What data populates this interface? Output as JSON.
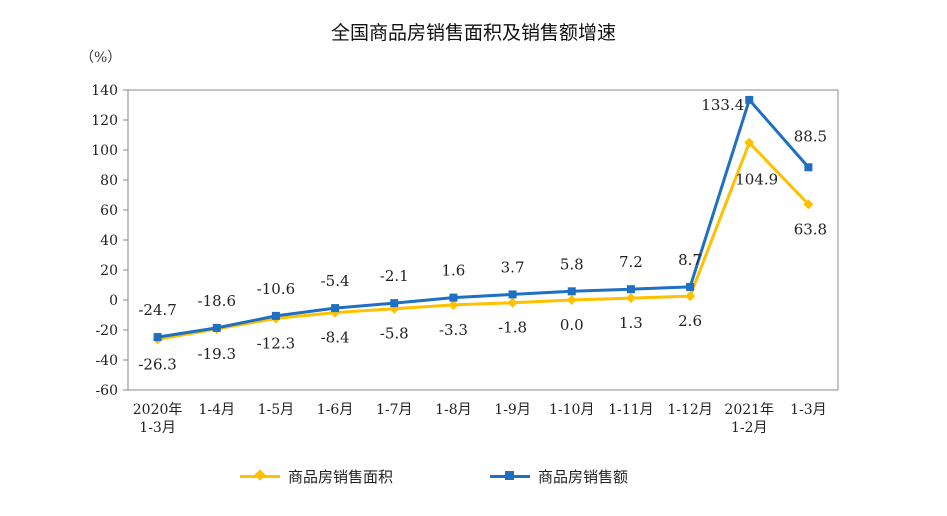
{
  "chart_data": {
    "type": "line",
    "title": "全国商品房销售面积及销售额增速",
    "ylabel": "（%）",
    "ylim": [
      -60,
      140
    ],
    "yticks": [
      140,
      120,
      100,
      80,
      60,
      40,
      20,
      0,
      -20,
      -40,
      -60
    ],
    "categories": [
      [
        "2020年",
        "1-3月"
      ],
      [
        "1-4月"
      ],
      [
        "1-5月"
      ],
      [
        "1-6月"
      ],
      [
        "1-7月"
      ],
      [
        "1-8月"
      ],
      [
        "1-9月"
      ],
      [
        "1-10月"
      ],
      [
        "1-11月"
      ],
      [
        "1-12月"
      ],
      [
        "2021年",
        "1-2月"
      ],
      [
        "1-3月"
      ]
    ],
    "series": [
      {
        "name": "商品房销售面积",
        "color": "#FFC000",
        "marker": "diamond",
        "values": [
          -26.3,
          -19.3,
          -12.3,
          -8.4,
          -5.8,
          -3.3,
          -1.8,
          0.0,
          1.3,
          2.6,
          104.9,
          63.8
        ],
        "labels": [
          "-26.3",
          "-19.3",
          "-12.3",
          "-8.4",
          "-5.8",
          "-3.3",
          "-1.8",
          "0.0",
          "1.3",
          "2.6",
          "104.9",
          "63.8"
        ]
      },
      {
        "name": "商品房销售额",
        "color": "#1F6FC2",
        "marker": "square",
        "values": [
          -24.7,
          -18.6,
          -10.6,
          -5.4,
          -2.1,
          1.6,
          3.7,
          5.8,
          7.2,
          8.7,
          133.4,
          88.5
        ],
        "labels": [
          "-24.7",
          "-18.6",
          "-10.6",
          "-5.4",
          "-2.1",
          "1.6",
          "3.7",
          "5.8",
          "7.2",
          "8.7",
          "133.4",
          "88.5"
        ]
      }
    ],
    "legend_position": "bottom",
    "grid": false
  }
}
